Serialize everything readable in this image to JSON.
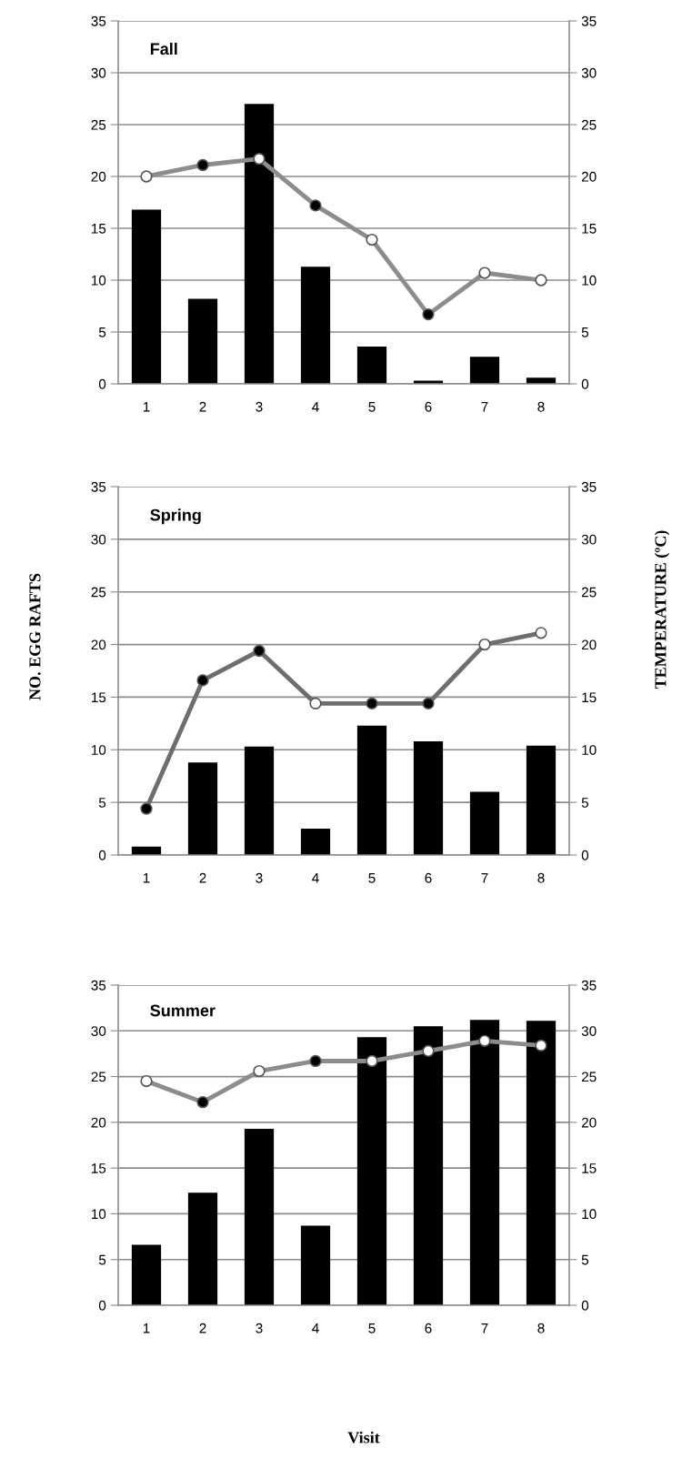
{
  "chart_data": [
    {
      "type": "bar",
      "title": "Fall",
      "categories": [
        "1",
        "2",
        "3",
        "4",
        "5",
        "6",
        "7",
        "8"
      ],
      "ylim": [
        0,
        35
      ],
      "yticks": [
        0,
        5,
        10,
        15,
        20,
        25,
        30,
        35
      ],
      "y2lim": [
        0,
        35
      ],
      "y2ticks": [
        0,
        5,
        10,
        15,
        20,
        25,
        30,
        35
      ],
      "grid": "y",
      "marker": "circle",
      "series": [
        {
          "color": "#000000",
          "values": [
            16.8,
            8.2,
            27.0,
            11.3,
            3.6,
            0.3,
            2.6,
            0.6
          ]
        },
        {
          "type": "line",
          "axis": "y2",
          "color": "#8c8c8c",
          "colors": [
            "#ffffff",
            "#000000",
            "#ffffff",
            "#000000",
            "#ffffff",
            "#000000",
            "#ffffff",
            "#ffffff"
          ],
          "values": [
            20.0,
            21.1,
            21.7,
            17.2,
            13.9,
            6.7,
            10.7,
            10.0
          ]
        }
      ]
    },
    {
      "type": "bar",
      "title": "Spring",
      "ylabel": "NO. EGG RAFTS",
      "y2label": "TEMPERATURE (ºC)",
      "categories": [
        "1",
        "2",
        "3",
        "4",
        "5",
        "6",
        "7",
        "8"
      ],
      "ylim": [
        0,
        35
      ],
      "yticks": [
        0,
        5,
        10,
        15,
        20,
        25,
        30,
        35
      ],
      "y2lim": [
        0,
        35
      ],
      "y2ticks": [
        0,
        5,
        10,
        15,
        20,
        25,
        30,
        35
      ],
      "grid": "y",
      "marker": "circle",
      "series": [
        {
          "color": "#000000",
          "values": [
            0.8,
            8.8,
            10.3,
            2.5,
            12.3,
            10.8,
            6.0,
            10.4
          ]
        },
        {
          "type": "line",
          "axis": "y2",
          "color": "#6e6e6e",
          "colors": [
            "#000000",
            "#000000",
            "#000000",
            "#ffffff",
            "#000000",
            "#000000",
            "#ffffff",
            "#ffffff"
          ],
          "values": [
            4.4,
            16.6,
            19.4,
            14.4,
            14.4,
            14.4,
            20.0,
            21.1
          ]
        }
      ]
    },
    {
      "type": "bar",
      "title": "Summer",
      "xlabel": "Visit",
      "categories": [
        "1",
        "2",
        "3",
        "4",
        "5",
        "6",
        "7",
        "8"
      ],
      "ylim": [
        0,
        35
      ],
      "yticks": [
        0,
        5,
        10,
        15,
        20,
        25,
        30,
        35
      ],
      "y2lim": [
        0,
        35
      ],
      "y2ticks": [
        0,
        5,
        10,
        15,
        20,
        25,
        30,
        35
      ],
      "grid": "y",
      "marker": "circle",
      "series": [
        {
          "color": "#000000",
          "values": [
            6.6,
            12.3,
            19.3,
            8.7,
            29.3,
            30.5,
            31.2,
            31.1
          ]
        },
        {
          "type": "line",
          "axis": "y2",
          "color": "#8c8c8c",
          "colors": [
            "#ffffff",
            "#000000",
            "#ffffff",
            "#000000",
            "#ffffff",
            "#ffffff",
            "#ffffff",
            "#ffffff"
          ],
          "values": [
            24.5,
            22.2,
            25.6,
            26.7,
            26.7,
            27.8,
            28.9,
            28.4
          ]
        }
      ]
    }
  ]
}
